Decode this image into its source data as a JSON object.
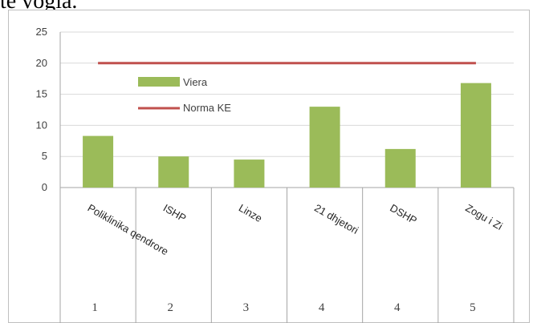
{
  "header_text": "te vogla.",
  "chart_data": {
    "type": "bar",
    "title": "",
    "xlabel": "",
    "ylabel": "",
    "ylim": [
      0,
      25
    ],
    "yticks": [
      0,
      5,
      10,
      15,
      20,
      25
    ],
    "categories": [
      "Poliklinika qendrore",
      "ISHP",
      "Linze",
      "21 dhjetori",
      "DSHP",
      "Zogu i Zi"
    ],
    "row_numbers": [
      "1",
      "2",
      "3",
      "4",
      "4",
      "5"
    ],
    "series": [
      {
        "name": "Viera",
        "type": "bar",
        "values": [
          8.3,
          5.0,
          4.5,
          13.0,
          6.2,
          16.8
        ],
        "color": "#9bbb59"
      },
      {
        "name": "Norma KE",
        "type": "line",
        "values": [
          20,
          20,
          20,
          20,
          20,
          20
        ],
        "color": "#c0504d"
      }
    ],
    "grid": true,
    "legend": "upper-left"
  }
}
